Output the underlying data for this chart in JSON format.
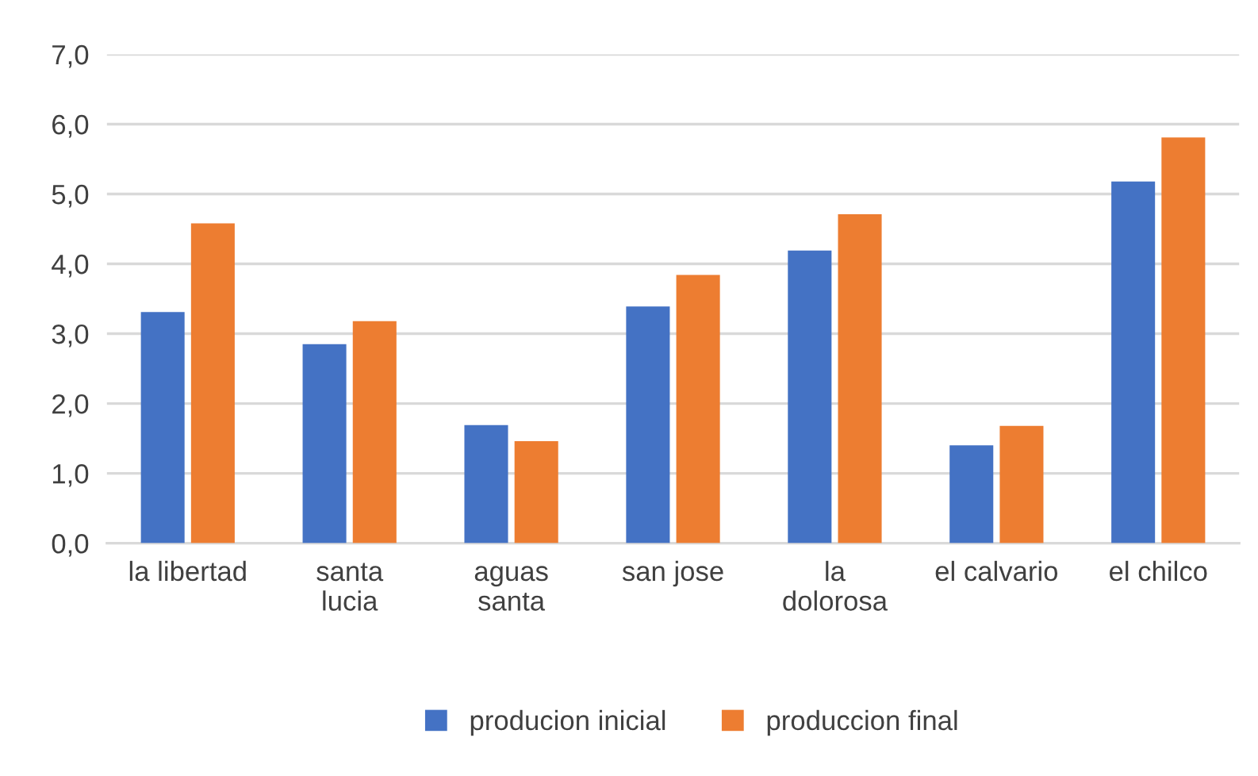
{
  "chart_data": {
    "type": "bar",
    "categories": [
      "la libertad",
      "santa\nlucia",
      "aguas\nsanta",
      "san jose",
      "la\ndolorosa",
      "el calvario",
      "el chilco"
    ],
    "series": [
      {
        "name": "producion inicial",
        "color": "#4472c4",
        "values": [
          3.31,
          2.85,
          1.69,
          3.39,
          4.19,
          1.4,
          5.18
        ]
      },
      {
        "name": "produccion final",
        "color": "#ed7d31",
        "values": [
          4.58,
          3.18,
          1.46,
          3.84,
          4.71,
          1.68,
          5.81
        ]
      }
    ],
    "ylim": [
      0,
      7
    ],
    "yticks": [
      {
        "value": 0,
        "label": "0,0"
      },
      {
        "value": 1,
        "label": "1,0"
      },
      {
        "value": 2,
        "label": "2,0"
      },
      {
        "value": 3,
        "label": "3,0"
      },
      {
        "value": 4,
        "label": "4,0"
      },
      {
        "value": 5,
        "label": "5,0"
      },
      {
        "value": 6,
        "label": "6,0"
      },
      {
        "value": 7,
        "label": "7,0"
      }
    ],
    "grid": "y",
    "legend": "bottom"
  }
}
